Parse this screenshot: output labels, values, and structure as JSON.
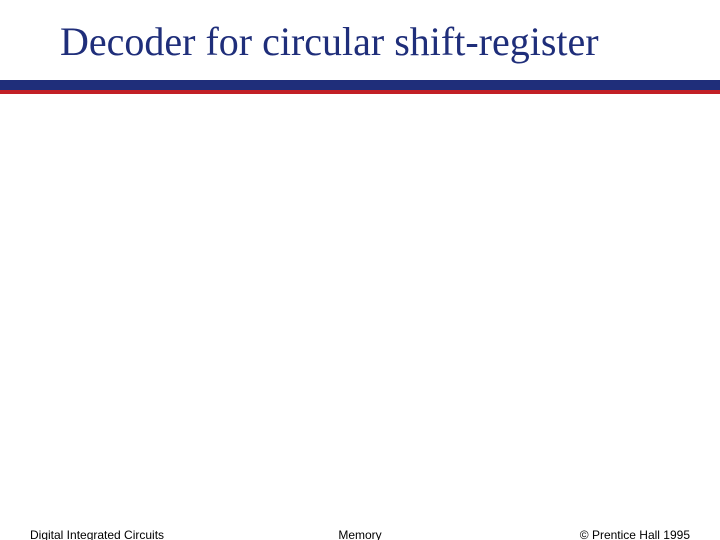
{
  "slide": {
    "title": "Decoder for circular shift-register",
    "title_color": "#1f2e7a",
    "title_fontsize": 40,
    "rule": {
      "navy_color": "#1f2e7a",
      "red_color": "#c22026",
      "navy_height": 10,
      "red_height": 4
    },
    "footer": {
      "left": "Digital Integrated Circuits",
      "center": "Memory",
      "right": "© Prentice Hall 1995",
      "fontsize": 12,
      "color": "#000000"
    },
    "background_color": "#ffffff"
  }
}
